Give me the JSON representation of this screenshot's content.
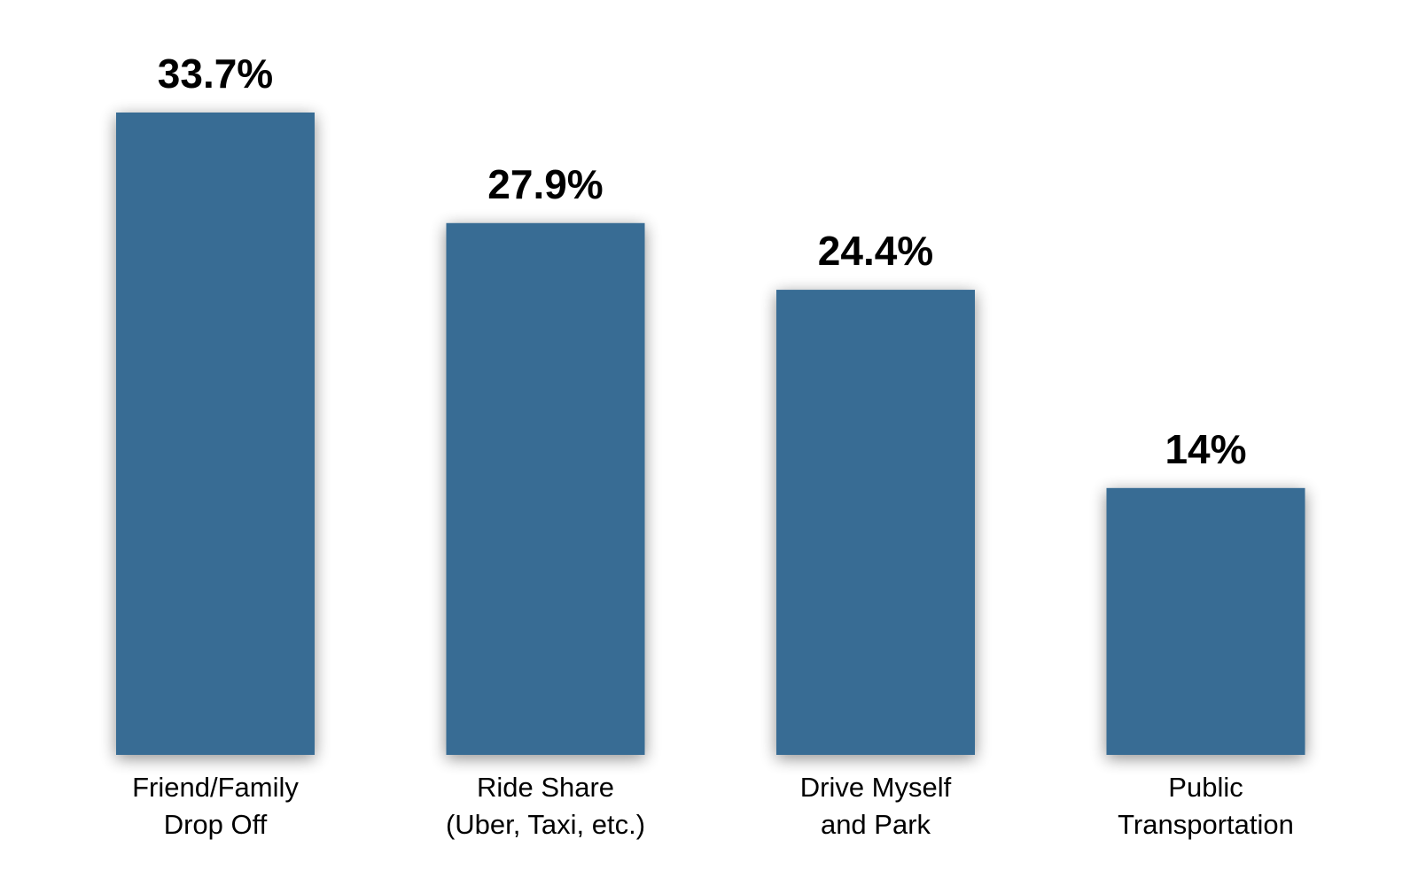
{
  "chart_data": {
    "type": "bar",
    "categories": [
      [
        "Friend/Family",
        "Drop Off"
      ],
      [
        "Ride Share",
        "(Uber, Taxi, etc.)"
      ],
      [
        "Drive Myself",
        "and Park"
      ],
      [
        "Public",
        "Transportation"
      ]
    ],
    "values": [
      33.7,
      27.9,
      24.4,
      14
    ],
    "value_labels": [
      "33.7%",
      "27.9%",
      "24.4%",
      "14%"
    ],
    "ylim": [
      0,
      33.7
    ],
    "grid": false,
    "axes_visible": false,
    "colors": {
      "bar": "#386C94",
      "text": "#000000",
      "background": "#FFFFFF"
    }
  }
}
